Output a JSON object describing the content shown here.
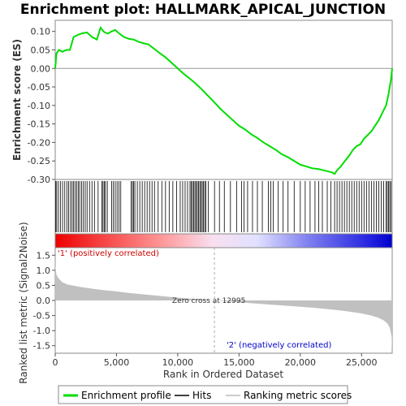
{
  "chart_data": {
    "type": "line",
    "title": "Enrichment plot: HALLMARK_APICAL_JUNCTION",
    "es_panel": {
      "ylabel": "Enrichment score (ES)",
      "ylim": [
        -0.3,
        0.13
      ],
      "yticks": [
        0.1,
        0.05,
        0.0,
        -0.05,
        -0.1,
        -0.15,
        -0.2,
        -0.25,
        -0.3
      ],
      "ytick_labels": [
        "0.10",
        "0.05",
        "0.00",
        "-0.05",
        "-0.10",
        "-0.15",
        "-0.20",
        "-0.25",
        "-0.30"
      ],
      "series": {
        "name": "Enrichment profile",
        "color": "#00dd00",
        "x": [
          0,
          100,
          300,
          600,
          900,
          1200,
          1500,
          1800,
          2200,
          2600,
          3000,
          3400,
          3700,
          4000,
          4300,
          4600,
          4900,
          5200,
          5600,
          6000,
          6400,
          6800,
          7200,
          7600,
          8000,
          8500,
          9000,
          9500,
          10000,
          10500,
          11000,
          11500,
          12000,
          12500,
          13000,
          13500,
          14000,
          14500,
          15000,
          15500,
          16000,
          16500,
          17000,
          17500,
          18000,
          18500,
          19000,
          19500,
          20000,
          20500,
          21000,
          21500,
          22000,
          22500,
          22800,
          23000,
          23300,
          23600,
          24000,
          24300,
          24600,
          24900,
          25200,
          25500,
          25800,
          26100,
          26400,
          26700,
          27000,
          27200,
          27400,
          27500
        ],
        "y": [
          0.0,
          0.04,
          0.05,
          0.045,
          0.05,
          0.05,
          0.085,
          0.09,
          0.095,
          0.097,
          0.085,
          0.078,
          0.11,
          0.098,
          0.094,
          0.1,
          0.104,
          0.095,
          0.085,
          0.08,
          0.078,
          0.072,
          0.068,
          0.065,
          0.055,
          0.042,
          0.03,
          0.015,
          0.0,
          -0.015,
          -0.028,
          -0.042,
          -0.058,
          -0.075,
          -0.092,
          -0.11,
          -0.125,
          -0.14,
          -0.155,
          -0.165,
          -0.178,
          -0.188,
          -0.2,
          -0.21,
          -0.22,
          -0.232,
          -0.24,
          -0.25,
          -0.26,
          -0.265,
          -0.27,
          -0.272,
          -0.276,
          -0.28,
          -0.285,
          -0.275,
          -0.265,
          -0.252,
          -0.235,
          -0.22,
          -0.21,
          -0.205,
          -0.19,
          -0.18,
          -0.17,
          -0.155,
          -0.14,
          -0.12,
          -0.1,
          -0.07,
          -0.03,
          0.0
        ]
      }
    },
    "hits": {
      "name": "Hits",
      "positions": [
        30,
        120,
        260,
        420,
        600,
        780,
        950,
        1100,
        1250,
        1380,
        1500,
        1620,
        1750,
        1880,
        2000,
        2150,
        2300,
        2450,
        2600,
        2800,
        3000,
        3200,
        3500,
        3800,
        3900,
        4000,
        4100,
        4250,
        4600,
        4750,
        4900,
        5050,
        5200,
        5350,
        6200,
        6300,
        6400,
        6500,
        6700,
        6900,
        7100,
        7300,
        7500,
        7700,
        7900,
        8100,
        8400,
        8700,
        9000,
        9300,
        9600,
        9900,
        10200,
        10400,
        10600,
        10800,
        11000,
        11100,
        11200,
        11300,
        11400,
        11500,
        11600,
        11700,
        11800,
        11900,
        12000,
        12100,
        12200,
        12300,
        12500,
        13000,
        13400,
        13800,
        14300,
        14800,
        15200,
        15400,
        15700,
        16100,
        16500,
        16900,
        17400,
        17600,
        17800,
        18200,
        18600,
        19000,
        19500,
        20000,
        20400,
        20800,
        21200,
        21500,
        21800,
        22200,
        22500,
        22800,
        23000,
        23200,
        23400,
        23600,
        23800,
        24000,
        24200,
        24400,
        24600,
        24800,
        25000,
        25200,
        25400,
        25600,
        25800,
        26000,
        26200,
        26400,
        26600,
        26800,
        27000,
        27100,
        27200,
        27300,
        27400
      ]
    },
    "metric_panel": {
      "ylabel": "Ranked list metric (Signal2Noise)",
      "xlabel": "Rank in Ordered Dataset",
      "xlim": [
        0,
        27500
      ],
      "ylim": [
        -1.75,
        1.75
      ],
      "yticks": [
        1.5,
        1.0,
        0.5,
        0.0,
        -0.5,
        -1.0,
        -1.5
      ],
      "ytick_labels": [
        "1.5",
        "1.0",
        "0.5",
        "0.0",
        "-0.5",
        "-1.0",
        "-1.5"
      ],
      "xticks": [
        0,
        5000,
        10000,
        15000,
        20000,
        25000
      ],
      "xtick_labels": [
        "0",
        "5,000",
        "10,000",
        "15,000",
        "20,000",
        "25,000"
      ],
      "series": {
        "name": "Ranking metric scores",
        "x": [
          0,
          20,
          100,
          300,
          600,
          1000,
          2000,
          3000,
          4000,
          5000,
          6000,
          7000,
          8000,
          9000,
          10000,
          11000,
          12000,
          12995,
          14000,
          15000,
          16000,
          17000,
          18000,
          19000,
          20000,
          21000,
          22000,
          23000,
          24000,
          25000,
          25800,
          26400,
          26800,
          27100,
          27300,
          27450,
          27500
        ],
        "y": [
          1.55,
          1.1,
          0.85,
          0.72,
          0.6,
          0.53,
          0.45,
          0.39,
          0.34,
          0.3,
          0.25,
          0.21,
          0.17,
          0.13,
          0.09,
          0.06,
          0.03,
          0.0,
          -0.03,
          -0.06,
          -0.09,
          -0.12,
          -0.15,
          -0.18,
          -0.21,
          -0.24,
          -0.28,
          -0.32,
          -0.37,
          -0.43,
          -0.5,
          -0.58,
          -0.66,
          -0.76,
          -0.9,
          -1.2,
          -1.7
        ]
      },
      "zero_cross_label": "Zero cross at 12995",
      "zero_cross": 12995,
      "pos_label": "'1' (positively correlated)",
      "neg_label": "'2' (negatively correlated)"
    },
    "legend": [
      "Enrichment profile",
      "Hits",
      "Ranking metric scores"
    ]
  }
}
